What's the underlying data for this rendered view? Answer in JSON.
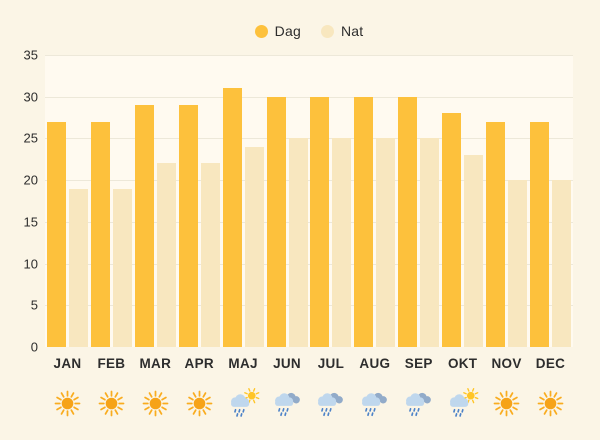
{
  "chart_data": {
    "type": "bar",
    "title": "",
    "categories": [
      "JAN",
      "FEB",
      "MAR",
      "APR",
      "MAJ",
      "JUN",
      "JUL",
      "AUG",
      "SEP",
      "OKT",
      "NOV",
      "DEC"
    ],
    "series": [
      {
        "name": "Dag",
        "color": "#FDC13C",
        "values": [
          27,
          27,
          29,
          29,
          31,
          30,
          30,
          30,
          30,
          28,
          27,
          27
        ]
      },
      {
        "name": "Nat",
        "color": "#F8E7BF",
        "values": [
          19,
          19,
          22,
          22,
          24,
          25,
          25,
          25,
          25,
          23,
          20,
          20
        ]
      }
    ],
    "xlabel": "",
    "ylabel": "",
    "ylim": [
      0,
      35
    ],
    "yticks": [
      0,
      5,
      10,
      15,
      20,
      25,
      30,
      35
    ],
    "grid": true,
    "legend_position": "top-center"
  },
  "weather_icons": [
    "sun",
    "sun",
    "sun",
    "sun",
    "sun-rain",
    "rain-cloud",
    "rain-cloud",
    "rain-cloud",
    "rain-cloud",
    "sun-rain",
    "sun",
    "sun"
  ],
  "colors": {
    "page_background": "#FBF5E6",
    "plot_background": "#FFFAF0",
    "gridline": "#EDE8D9",
    "text": "#2D2D2D",
    "dag_bar": "#FDC13C",
    "nat_bar": "#F8E7BF",
    "sun_core": "#F6A318",
    "sun_rays": "#F9AC1F",
    "sun_small": "#FFC527",
    "cloud_light": "#BFD7ED",
    "cloud_dark": "#92ABC9",
    "rain_drop": "#4C82C8"
  }
}
